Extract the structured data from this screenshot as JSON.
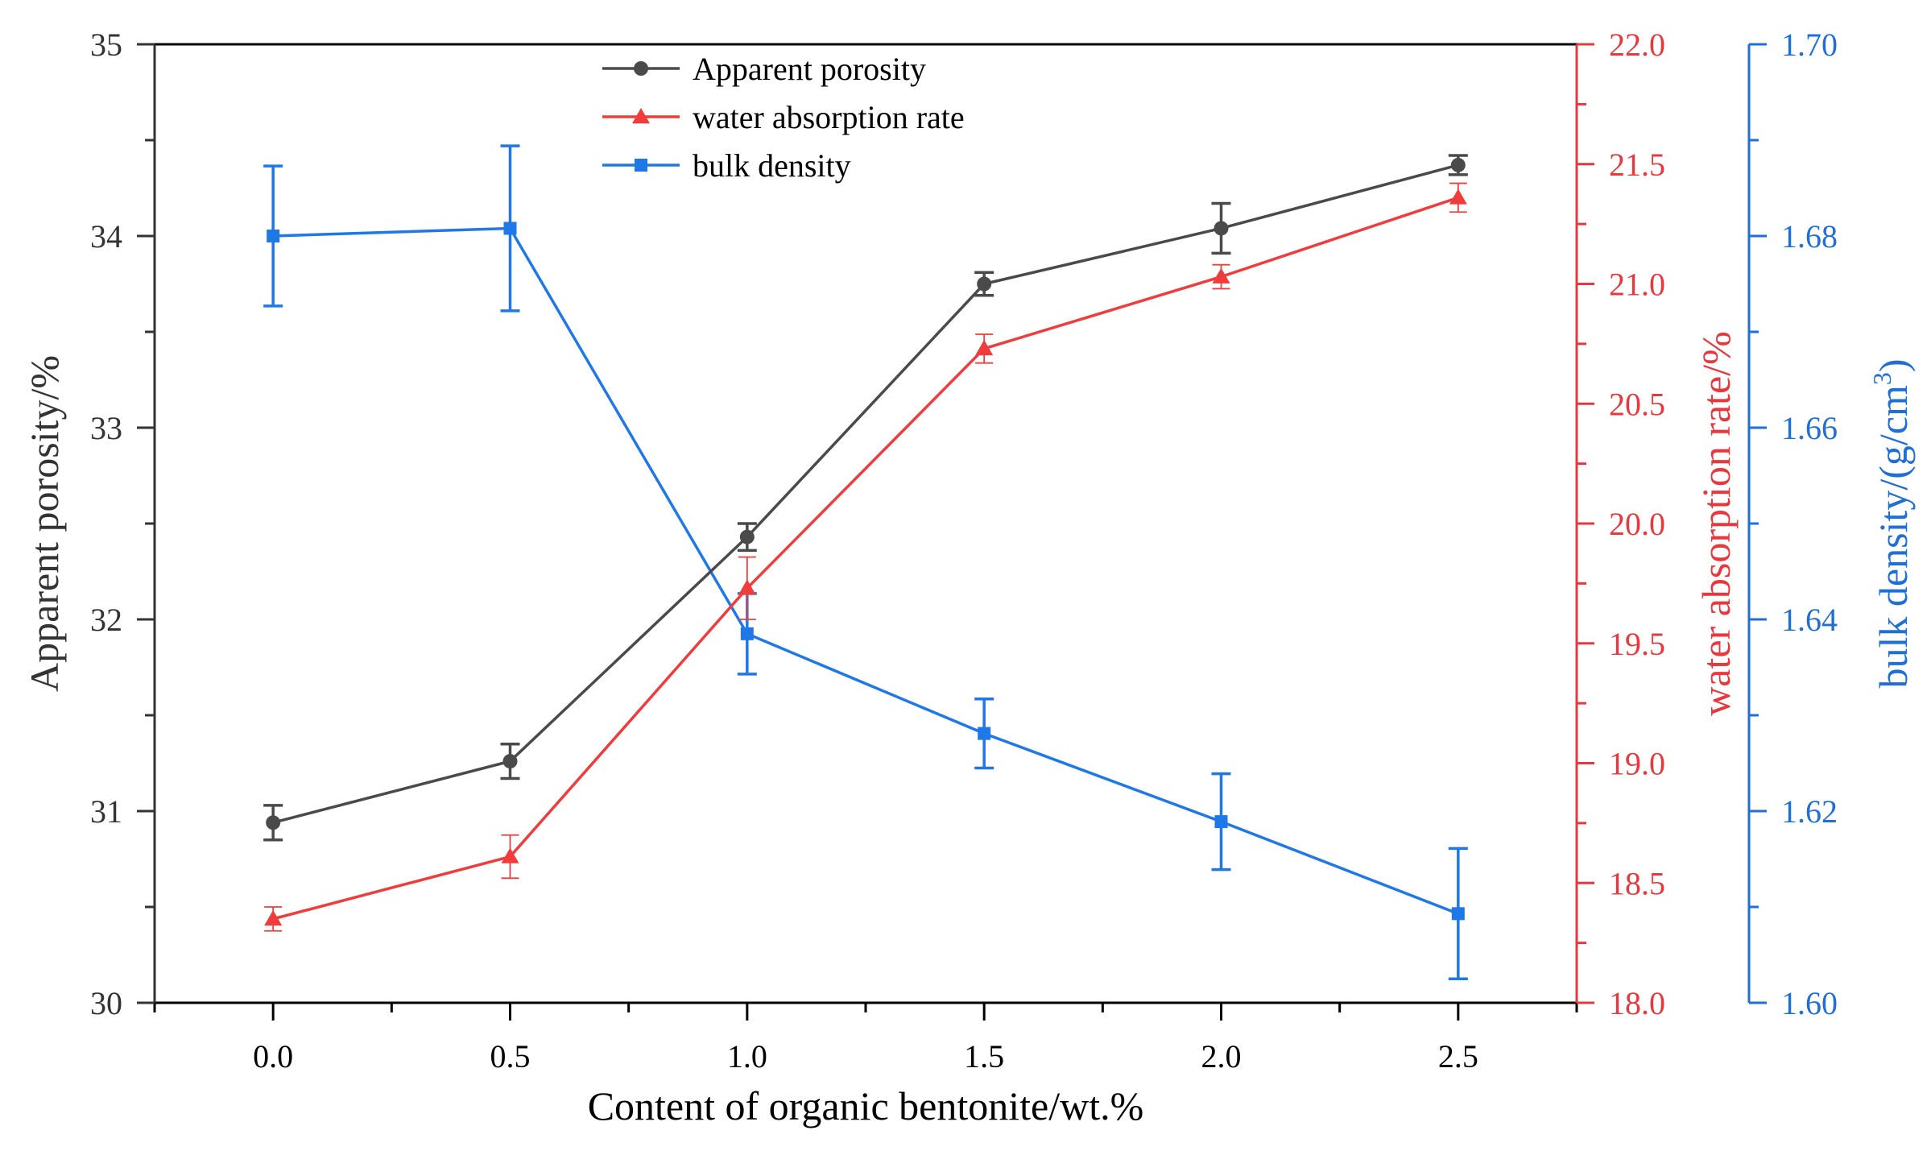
{
  "chart_data": {
    "type": "line",
    "xlabel": "Content of organic bentonite/wt.%",
    "x": [
      0.0,
      0.5,
      1.0,
      1.5,
      2.0,
      2.5
    ],
    "x_tick_labels": [
      "0.0",
      "0.5",
      "1.0",
      "1.5",
      "2.0",
      "2.5"
    ],
    "xlim": [
      -0.25,
      2.75
    ],
    "axes": {
      "left": {
        "label": "Apparent porosity/%",
        "ylim": [
          30,
          35
        ],
        "ticks": [
          30,
          31,
          32,
          33,
          34,
          35
        ],
        "tick_labels": [
          "30",
          "31",
          "32",
          "33",
          "34",
          "35"
        ],
        "color": "#333333"
      },
      "right1": {
        "label": "water absorption rate/%",
        "ylim": [
          18.0,
          22.0
        ],
        "ticks": [
          18.0,
          18.5,
          19.0,
          19.5,
          20.0,
          20.5,
          21.0,
          21.5,
          22.0
        ],
        "tick_labels": [
          "18.0",
          "18.5",
          "19.0",
          "19.5",
          "20.0",
          "20.5",
          "21.0",
          "21.5",
          "22.0"
        ],
        "color": "#e8383d"
      },
      "right2": {
        "label_main": "bulk density/(g/cm",
        "label_sup": "3",
        "label_end": ")",
        "ylim": [
          1.6,
          1.7
        ],
        "ticks": [
          1.6,
          1.62,
          1.64,
          1.66,
          1.68,
          1.7
        ],
        "tick_labels": [
          "1.60",
          "1.62",
          "1.64",
          "1.66",
          "1.68",
          "1.70"
        ],
        "color": "#1f6fd6"
      }
    },
    "series": [
      {
        "name": "Apparent porosity",
        "axis": "left",
        "color": "#4a4a4a",
        "marker": "circle",
        "values": [
          30.94,
          31.26,
          32.43,
          33.75,
          34.04,
          34.37
        ],
        "errors": [
          0.09,
          0.09,
          0.07,
          0.06,
          0.13,
          0.05
        ]
      },
      {
        "name": "water absorption rate",
        "axis": "right1",
        "color": "#f03c3c",
        "marker": "triangle",
        "values": [
          18.35,
          18.61,
          19.73,
          20.73,
          21.03,
          21.36
        ],
        "errors": [
          0.05,
          0.09,
          0.13,
          0.06,
          0.05,
          0.06
        ]
      },
      {
        "name": "bulk density",
        "axis": "right2",
        "color": "#1f78e8",
        "marker": "square",
        "values": [
          1.68,
          1.6808,
          1.6385,
          1.6281,
          1.6189,
          1.6093
        ],
        "errors": [
          0.0073,
          0.0086,
          0.0042,
          0.0036,
          0.005,
          0.0068
        ]
      }
    ],
    "legend": {
      "position": "top-center",
      "entries": [
        "Apparent porosity",
        "water absorption rate",
        "bulk density"
      ]
    }
  }
}
